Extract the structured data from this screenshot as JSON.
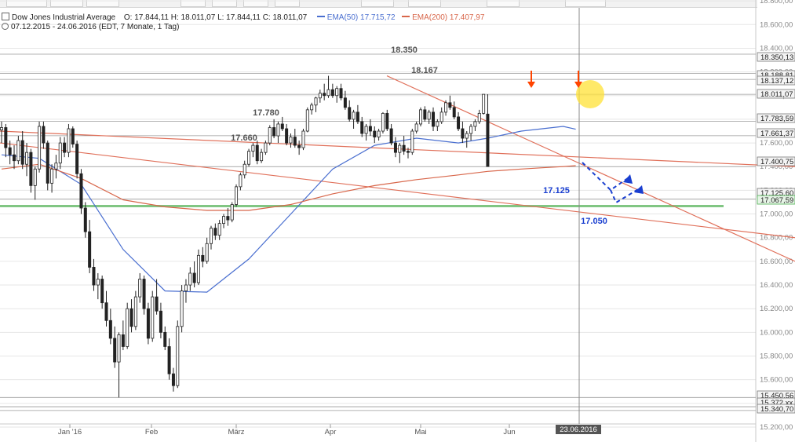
{
  "header": {
    "instrument": "Dow Jones Industrial Average",
    "ohlc": "O: 17.844,11   H: 18.011,07   L: 17.844,11   C: 18.011,07",
    "period": "07.12.2015 - 24.06.2016 (EDT, 7 Monate, 1 Tag)",
    "ema50_label": "EMA(50)",
    "ema50_value": "17.715,72",
    "ema200_label": "EMA(200)",
    "ema200_value": "17.407,97"
  },
  "colors": {
    "candle": "#222222",
    "ema50": "#4a6fd0",
    "ema200": "#d8664a",
    "trendline": "#e0705a",
    "support_green": "#4caf50",
    "projection": "#1a3fd0",
    "arrow": "#ff4400",
    "highlight": "#ffe135"
  },
  "chart_data": {
    "type": "candlestick",
    "x_range": [
      "2015-12-07",
      "2016-06-24"
    ],
    "ylim": [
      15200,
      18800
    ],
    "y_ticks": [
      "15.200,00",
      "15.400,00",
      "15.600,00",
      "15.800,00",
      "16.000,00",
      "16.200,00",
      "16.400,00",
      "16.600,00",
      "16.800,00",
      "17.000,00",
      "17.200,00",
      "17.400,00",
      "17.600,00",
      "17.800,00",
      "18.000,00",
      "18.200,00",
      "18.400,00",
      "18.600,00",
      "18.800,00"
    ],
    "x_ticks": [
      "Jan '16",
      "Feb",
      "März",
      "Apr",
      "Mai",
      "Jun"
    ],
    "cursor_date_label": "23.06.2016",
    "price_tags": [
      "18.350,13",
      "18.188,81",
      "18.137,12",
      "18.011,07",
      "17.783,59",
      "17.661,37",
      "17.400,75",
      "17.125,60",
      "17.067,59",
      "15.450,56",
      "15.372,xx",
      "15.340,70"
    ],
    "level_labels": [
      "18.350",
      "18.167",
      "17.780",
      "17.660",
      "17.125",
      "17.050"
    ],
    "series": [
      {
        "name": "Dow Jones Industrial Average",
        "type": "ohlc",
        "x": [
          1,
          2,
          3,
          4,
          5,
          6,
          7,
          8,
          9,
          10,
          11,
          12,
          13,
          14,
          15,
          16,
          17,
          18,
          19,
          20,
          21,
          22,
          23,
          24,
          25,
          26,
          27,
          28,
          29,
          30,
          31,
          32,
          33,
          34,
          35,
          36,
          37,
          38,
          39,
          40,
          41,
          42,
          43,
          44,
          45,
          46,
          47,
          48,
          49,
          50,
          51,
          52,
          53,
          54,
          55,
          56,
          57,
          58,
          59,
          60,
          61,
          62,
          63,
          64,
          65,
          66,
          67,
          68,
          69,
          70,
          71,
          72,
          73,
          74,
          75,
          76,
          77,
          78,
          79,
          80,
          81,
          82,
          83,
          84,
          85,
          86,
          87,
          88,
          89,
          90,
          91,
          92,
          93,
          94,
          95,
          96,
          97,
          98,
          99,
          100,
          101,
          102,
          103,
          104,
          105,
          106,
          107,
          108,
          109,
          110,
          111,
          112,
          113,
          114,
          115,
          116,
          117,
          118,
          119,
          120,
          121,
          122,
          123,
          124,
          125,
          126,
          127,
          128,
          129,
          130,
          131,
          132,
          133,
          134,
          135,
          136,
          137,
          138,
          139
        ],
        "ohlc": [
          [
            17710,
            17780,
            17600,
            17730
          ],
          [
            17730,
            17760,
            17480,
            17560
          ],
          [
            17560,
            17620,
            17420,
            17500
          ],
          [
            17500,
            17580,
            17380,
            17450
          ],
          [
            17450,
            17660,
            17420,
            17620
          ],
          [
            17620,
            17700,
            17380,
            17420
          ],
          [
            17420,
            17600,
            17320,
            17520
          ],
          [
            17520,
            17550,
            17180,
            17240
          ],
          [
            17240,
            17400,
            17120,
            17380
          ],
          [
            17380,
            17780,
            17350,
            17740
          ],
          [
            17740,
            17780,
            17550,
            17600
          ],
          [
            17600,
            17620,
            17200,
            17260
          ],
          [
            17260,
            17420,
            17180,
            17380
          ],
          [
            17380,
            17500,
            17300,
            17430
          ],
          [
            17430,
            17650,
            17380,
            17600
          ],
          [
            17600,
            17650,
            17480,
            17520
          ],
          [
            17520,
            17760,
            17480,
            17720
          ],
          [
            17720,
            17740,
            17560,
            17590
          ],
          [
            17590,
            17620,
            17300,
            17340
          ],
          [
            17340,
            17380,
            17000,
            17050
          ],
          [
            17050,
            17100,
            16800,
            16850
          ],
          [
            16850,
            16950,
            16500,
            16550
          ],
          [
            16550,
            16620,
            16350,
            16400
          ],
          [
            16400,
            16500,
            16280,
            16450
          ],
          [
            16450,
            16480,
            16200,
            16250
          ],
          [
            16250,
            16350,
            16050,
            16100
          ],
          [
            16100,
            16200,
            15900,
            15950
          ],
          [
            15950,
            16050,
            15700,
            15750
          ],
          [
            15750,
            16000,
            15450,
            15980
          ],
          [
            15980,
            16100,
            15850,
            15880
          ],
          [
            15880,
            16250,
            15860,
            16200
          ],
          [
            16200,
            16280,
            16000,
            16050
          ],
          [
            16050,
            16350,
            16020,
            16300
          ],
          [
            16300,
            16500,
            16250,
            16450
          ],
          [
            16450,
            16480,
            16150,
            16200
          ],
          [
            16200,
            16250,
            15900,
            15950
          ],
          [
            15950,
            16350,
            15920,
            16300
          ],
          [
            16300,
            16450,
            16150,
            16180
          ],
          [
            16180,
            16250,
            15950,
            16000
          ],
          [
            16000,
            16050,
            15850,
            15880
          ],
          [
            15880,
            15950,
            15600,
            15650
          ],
          [
            15650,
            15700,
            15500,
            15550
          ],
          [
            15550,
            16100,
            15530,
            16050
          ],
          [
            16050,
            16400,
            16000,
            16350
          ],
          [
            16350,
            16450,
            16250,
            16400
          ],
          [
            16400,
            16550,
            16350,
            16500
          ],
          [
            16500,
            16600,
            16380,
            16420
          ],
          [
            16420,
            16700,
            16400,
            16650
          ],
          [
            16650,
            16720,
            16550,
            16600
          ],
          [
            16600,
            16800,
            16580,
            16750
          ],
          [
            16750,
            16900,
            16700,
            16880
          ],
          [
            16880,
            16920,
            16780,
            16820
          ],
          [
            16820,
            16950,
            16780,
            16920
          ],
          [
            16920,
            17000,
            16880,
            16980
          ],
          [
            16980,
            17050,
            16900,
            16950
          ],
          [
            16950,
            17100,
            16930,
            17080
          ],
          [
            17080,
            17250,
            17060,
            17230
          ],
          [
            17230,
            17350,
            17200,
            17330
          ],
          [
            17330,
            17450,
            17300,
            17420
          ],
          [
            17420,
            17550,
            17400,
            17530
          ],
          [
            17530,
            17600,
            17480,
            17580
          ],
          [
            17580,
            17620,
            17420,
            17450
          ],
          [
            17450,
            17550,
            17430,
            17520
          ],
          [
            17520,
            17620,
            17500,
            17600
          ],
          [
            17600,
            17750,
            17580,
            17730
          ],
          [
            17730,
            17800,
            17640,
            17660
          ],
          [
            17660,
            17780,
            17600,
            17760
          ],
          [
            17760,
            17820,
            17700,
            17720
          ],
          [
            17720,
            17760,
            17580,
            17600
          ],
          [
            17600,
            17680,
            17560,
            17650
          ],
          [
            17650,
            17720,
            17560,
            17580
          ],
          [
            17580,
            17620,
            17500,
            17560
          ],
          [
            17560,
            17720,
            17540,
            17700
          ],
          [
            17700,
            17900,
            17690,
            17880
          ],
          [
            17880,
            17940,
            17840,
            17920
          ],
          [
            17920,
            17990,
            17860,
            17980
          ],
          [
            17980,
            18050,
            17940,
            18020
          ],
          [
            18020,
            18100,
            17960,
            18000
          ],
          [
            18000,
            18167,
            17980,
            18050
          ],
          [
            18050,
            18100,
            17980,
            18000
          ],
          [
            18000,
            18080,
            17940,
            18060
          ],
          [
            18060,
            18100,
            17960,
            17980
          ],
          [
            17980,
            18040,
            17880,
            17900
          ],
          [
            17900,
            17960,
            17780,
            17800
          ],
          [
            17800,
            17880,
            17720,
            17860
          ],
          [
            17860,
            17920,
            17760,
            17780
          ],
          [
            17780,
            17820,
            17650,
            17680
          ],
          [
            17680,
            17760,
            17620,
            17740
          ],
          [
            17740,
            17800,
            17660,
            17700
          ],
          [
            17700,
            17740,
            17600,
            17650
          ],
          [
            17650,
            17720,
            17620,
            17700
          ],
          [
            17700,
            17860,
            17680,
            17850
          ],
          [
            17850,
            17880,
            17700,
            17720
          ],
          [
            17720,
            17760,
            17580,
            17600
          ],
          [
            17600,
            17650,
            17480,
            17520
          ],
          [
            17520,
            17600,
            17430,
            17580
          ],
          [
            17580,
            17660,
            17500,
            17530
          ],
          [
            17530,
            17560,
            17470,
            17520
          ],
          [
            17520,
            17720,
            17500,
            17700
          ],
          [
            17700,
            17780,
            17680,
            17760
          ],
          [
            17760,
            17900,
            17740,
            17880
          ],
          [
            17880,
            17910,
            17780,
            17800
          ],
          [
            17800,
            17880,
            17760,
            17860
          ],
          [
            17860,
            17900,
            17700,
            17740
          ],
          [
            17740,
            17800,
            17700,
            17780
          ],
          [
            17780,
            17900,
            17760,
            17860
          ],
          [
            17860,
            17960,
            17830,
            17940
          ],
          [
            17940,
            18000,
            17880,
            17900
          ],
          [
            17900,
            17950,
            17800,
            17820
          ],
          [
            17820,
            17860,
            17700,
            17720
          ],
          [
            17720,
            17780,
            17600,
            17640
          ],
          [
            17640,
            17700,
            17560,
            17680
          ],
          [
            17680,
            17760,
            17620,
            17740
          ],
          [
            17740,
            17800,
            17700,
            17780
          ],
          [
            17780,
            17880,
            17760,
            17850
          ],
          [
            17850,
            18011,
            17840,
            18011
          ],
          [
            17844,
            18011,
            17400,
            17401
          ]
        ]
      },
      {
        "name": "EMA(50)",
        "type": "line",
        "color": "#4a6fd0",
        "x": [
          1,
          10,
          20,
          30,
          40,
          50,
          60,
          70,
          80,
          90,
          100,
          110,
          117,
          125,
          130,
          135,
          138
        ],
        "y": [
          17500,
          17470,
          17250,
          16700,
          16350,
          16340,
          16620,
          17000,
          17380,
          17580,
          17640,
          17600,
          17640,
          17700,
          17720,
          17740,
          17716
        ]
      },
      {
        "name": "EMA(200)",
        "type": "line",
        "color": "#d8664a",
        "x": [
          1,
          10,
          20,
          30,
          40,
          50,
          60,
          70,
          80,
          90,
          100,
          110,
          117,
          125,
          130,
          135,
          138
        ],
        "y": [
          17380,
          17420,
          17300,
          17120,
          17060,
          17030,
          17030,
          17080,
          17170,
          17240,
          17290,
          17330,
          17360,
          17380,
          17390,
          17400,
          17408
        ]
      }
    ]
  }
}
